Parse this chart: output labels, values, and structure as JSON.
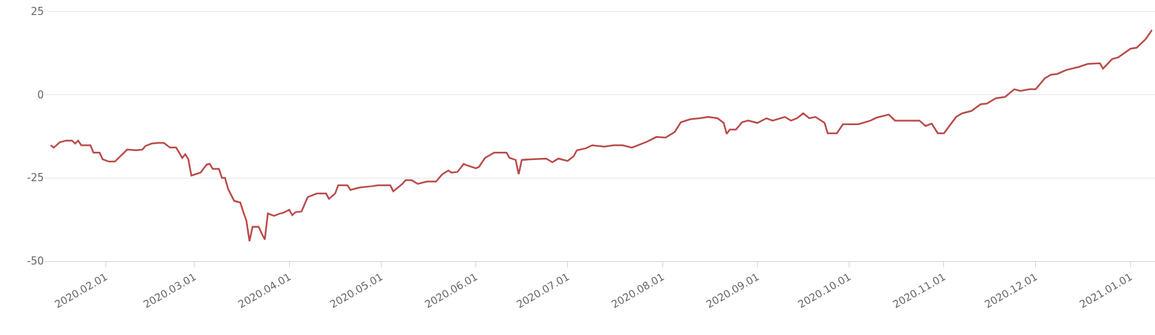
{
  "chart_data": {
    "type": "line",
    "x": [
      "2020-01-14",
      "2020-01-15",
      "2020-01-17",
      "2020-01-19",
      "2020-01-21",
      "2020-01-22",
      "2020-01-23",
      "2020-01-24",
      "2020-01-27",
      "2020-01-28",
      "2020-01-30",
      "2020-01-31",
      "2020-02-02",
      "2020-02-04",
      "2020-02-06",
      "2020-02-08",
      "2020-02-11",
      "2020-02-13",
      "2020-02-14",
      "2020-02-16",
      "2020-02-18",
      "2020-02-20",
      "2020-02-22",
      "2020-02-24",
      "2020-02-25",
      "2020-02-26",
      "2020-02-27",
      "2020-02-28",
      "2020-02-29",
      "2020-03-03",
      "2020-03-05",
      "2020-03-06",
      "2020-03-07",
      "2020-03-09",
      "2020-03-10",
      "2020-03-11",
      "2020-03-12",
      "2020-03-14",
      "2020-03-16",
      "2020-03-17",
      "2020-03-18",
      "2020-03-19",
      "2020-03-20",
      "2020-03-22",
      "2020-03-23",
      "2020-03-24",
      "2020-03-25",
      "2020-03-27",
      "2020-03-29",
      "2020-03-30",
      "2020-04-01",
      "2020-04-02",
      "2020-04-03",
      "2020-04-05",
      "2020-04-07",
      "2020-04-10",
      "2020-04-13",
      "2020-04-14",
      "2020-04-16",
      "2020-04-17",
      "2020-04-20",
      "2020-04-21",
      "2020-04-24",
      "2020-04-28",
      "2020-04-30",
      "2020-05-04",
      "2020-05-05",
      "2020-05-08",
      "2020-05-09",
      "2020-05-11",
      "2020-05-13",
      "2020-05-16",
      "2020-05-19",
      "2020-05-21",
      "2020-05-23",
      "2020-05-24",
      "2020-05-26",
      "2020-05-28",
      "2020-05-29",
      "2020-06-01",
      "2020-06-02",
      "2020-06-04",
      "2020-06-07",
      "2020-06-09",
      "2020-06-11",
      "2020-06-12",
      "2020-06-14",
      "2020-06-15",
      "2020-06-16",
      "2020-06-19",
      "2020-06-24",
      "2020-06-26",
      "2020-06-28",
      "2020-07-01",
      "2020-07-03",
      "2020-07-04",
      "2020-07-07",
      "2020-07-09",
      "2020-07-13",
      "2020-07-16",
      "2020-07-19",
      "2020-07-22",
      "2020-07-27",
      "2020-07-30",
      "2020-08-02",
      "2020-08-05",
      "2020-08-07",
      "2020-08-10",
      "2020-08-13",
      "2020-08-16",
      "2020-08-19",
      "2020-08-21",
      "2020-08-22",
      "2020-08-23",
      "2020-08-25",
      "2020-08-27",
      "2020-08-29",
      "2020-09-01",
      "2020-09-04",
      "2020-09-06",
      "2020-09-10",
      "2020-09-12",
      "2020-09-14",
      "2020-09-16",
      "2020-09-18",
      "2020-09-20",
      "2020-09-23",
      "2020-09-24",
      "2020-09-27",
      "2020-09-29",
      "2020-10-04",
      "2020-10-08",
      "2020-10-10",
      "2020-10-14",
      "2020-10-16",
      "2020-10-18",
      "2020-10-22",
      "2020-10-24",
      "2020-10-26",
      "2020-10-28",
      "2020-10-30",
      "2020-11-01",
      "2020-11-05",
      "2020-11-07",
      "2020-11-10",
      "2020-11-13",
      "2020-11-15",
      "2020-11-18",
      "2020-11-21",
      "2020-11-24",
      "2020-11-26",
      "2020-11-29",
      "2020-12-01",
      "2020-12-04",
      "2020-12-06",
      "2020-12-08",
      "2020-12-11",
      "2020-12-15",
      "2020-12-18",
      "2020-12-22",
      "2020-12-23",
      "2020-12-26",
      "2020-12-28",
      "2021-01-01",
      "2021-01-03",
      "2021-01-06",
      "2021-01-08"
    ],
    "series": [
      {
        "color": "#b84a48",
        "values": [
          -15.2,
          -15.9,
          -14.3,
          -13.8,
          -13.8,
          -14.7,
          -13.8,
          -15.2,
          -15.2,
          -17.4,
          -17.4,
          -19.4,
          -20.1,
          -20.1,
          -18.3,
          -16.5,
          -16.7,
          -16.5,
          -15.4,
          -14.7,
          -14.5,
          -14.5,
          -15.9,
          -15.9,
          -17.4,
          -19.0,
          -17.9,
          -19.4,
          -24.3,
          -23.4,
          -21.0,
          -20.8,
          -22.3,
          -22.3,
          -25.0,
          -25.0,
          -28.3,
          -31.9,
          -32.4,
          -35.3,
          -37.9,
          -44.0,
          -39.7,
          -39.7,
          -41.7,
          -43.5,
          -35.7,
          -36.4,
          -35.7,
          -35.5,
          -34.6,
          -36.2,
          -35.3,
          -35.1,
          -30.8,
          -29.7,
          -29.7,
          -31.3,
          -29.7,
          -27.2,
          -27.2,
          -28.6,
          -27.9,
          -27.5,
          -27.2,
          -27.2,
          -29.0,
          -26.8,
          -25.7,
          -25.7,
          -26.8,
          -26.1,
          -26.1,
          -23.9,
          -22.8,
          -23.4,
          -23.2,
          -20.8,
          -21.2,
          -22.1,
          -21.7,
          -19.0,
          -17.4,
          -17.4,
          -17.4,
          -19.0,
          -19.6,
          -23.9,
          -19.6,
          -19.4,
          -19.2,
          -20.3,
          -19.2,
          -19.9,
          -18.5,
          -16.7,
          -16.1,
          -15.2,
          -15.6,
          -15.2,
          -15.2,
          -15.9,
          -14.1,
          -12.7,
          -12.9,
          -11.2,
          -8.3,
          -7.4,
          -7.1,
          -6.7,
          -7.1,
          -8.5,
          -11.8,
          -10.5,
          -10.5,
          -8.3,
          -7.8,
          -8.5,
          -7.1,
          -7.8,
          -6.7,
          -7.8,
          -7.1,
          -5.6,
          -7.1,
          -6.7,
          -8.5,
          -11.6,
          -11.6,
          -8.9,
          -8.9,
          -7.8,
          -6.9,
          -6.0,
          -7.8,
          -7.8,
          -7.8,
          -7.8,
          -9.4,
          -8.7,
          -11.6,
          -11.6,
          -6.7,
          -5.6,
          -4.9,
          -2.9,
          -2.7,
          -1.1,
          -0.7,
          1.6,
          1.1,
          1.6,
          1.6,
          4.9,
          6.0,
          6.2,
          7.4,
          8.3,
          9.2,
          9.4,
          7.8,
          10.7,
          11.2,
          13.8,
          14.1,
          16.7,
          19.4
        ]
      }
    ],
    "xlim": [
      "2020-01-12",
      "2021-01-09"
    ],
    "xticks": [
      {
        "value": "2020-02-01",
        "label": "2020.02.01"
      },
      {
        "value": "2020-03-01",
        "label": "2020.03.01"
      },
      {
        "value": "2020-04-01",
        "label": "2020.04.01"
      },
      {
        "value": "2020-05-01",
        "label": "2020.05.01"
      },
      {
        "value": "2020-06-01",
        "label": "2020.06.01"
      },
      {
        "value": "2020-07-01",
        "label": "2020.07.01"
      },
      {
        "value": "2020-08-01",
        "label": "2020.08.01"
      },
      {
        "value": "2020-09-01",
        "label": "2020.09.01"
      },
      {
        "value": "2020-10-01",
        "label": "2020.10.01"
      },
      {
        "value": "2020-11-01",
        "label": "2020.11.01"
      },
      {
        "value": "2020-12-01",
        "label": "2020.12.01"
      },
      {
        "value": "2021-01-01",
        "label": "2021.01.01"
      }
    ],
    "ylim": [
      -50,
      28
    ],
    "yticks": [
      -50,
      -25,
      0,
      25
    ],
    "grid": "y",
    "marker": "none",
    "line_style": "solid"
  }
}
